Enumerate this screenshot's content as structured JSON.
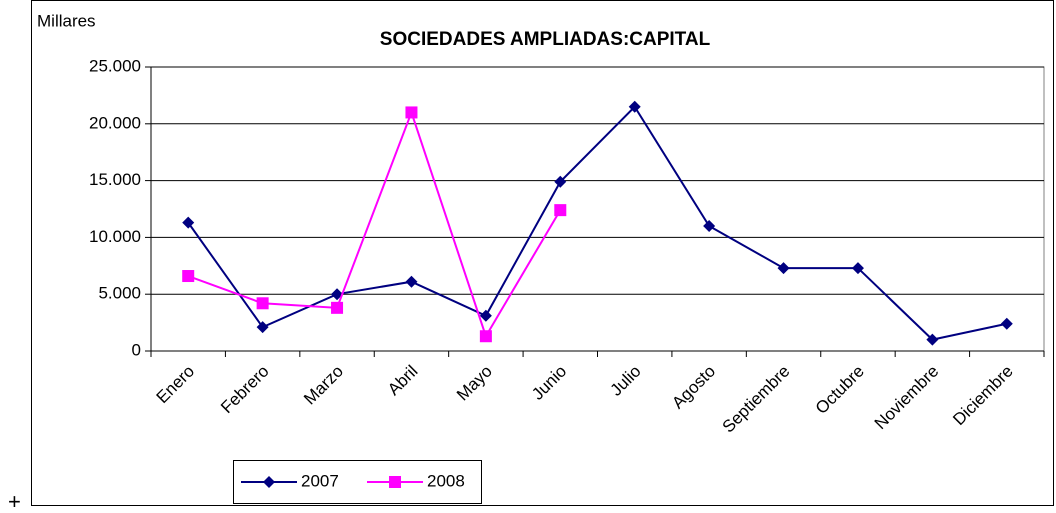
{
  "corner_mark": "+",
  "chart_data": {
    "type": "line",
    "title": "SOCIEDADES AMPLIADAS:CAPITAL",
    "y_axis_label": "Millares",
    "categories": [
      "Enero",
      "Febrero",
      "Marzo",
      "Abril",
      "Mayo",
      "Junio",
      "Julio",
      "Agosto",
      "Septiembre",
      "Octubre",
      "Noviembre",
      "Diciembre"
    ],
    "series": [
      {
        "name": "2007",
        "color": "#000080",
        "marker": "diamond",
        "values": [
          11300,
          2100,
          5000,
          6100,
          3100,
          14900,
          21500,
          11000,
          7300,
          7300,
          1000,
          2400
        ]
      },
      {
        "name": "2008",
        "color": "#ff00ff",
        "marker": "square",
        "values": [
          6600,
          4200,
          3800,
          21000,
          1300,
          12400,
          null,
          null,
          null,
          null,
          null,
          null
        ]
      }
    ],
    "ylim": [
      0,
      25000
    ],
    "yticks": [
      0,
      {
        "value": 5000,
        "label": "5.000"
      },
      {
        "value": 10000,
        "label": "10.000"
      },
      {
        "value": 15000,
        "label": "15.000"
      },
      {
        "value": 20000,
        "label": "20.000"
      },
      {
        "value": 25000,
        "label": "25.000"
      }
    ],
    "grid": true,
    "legend": "bottom"
  }
}
